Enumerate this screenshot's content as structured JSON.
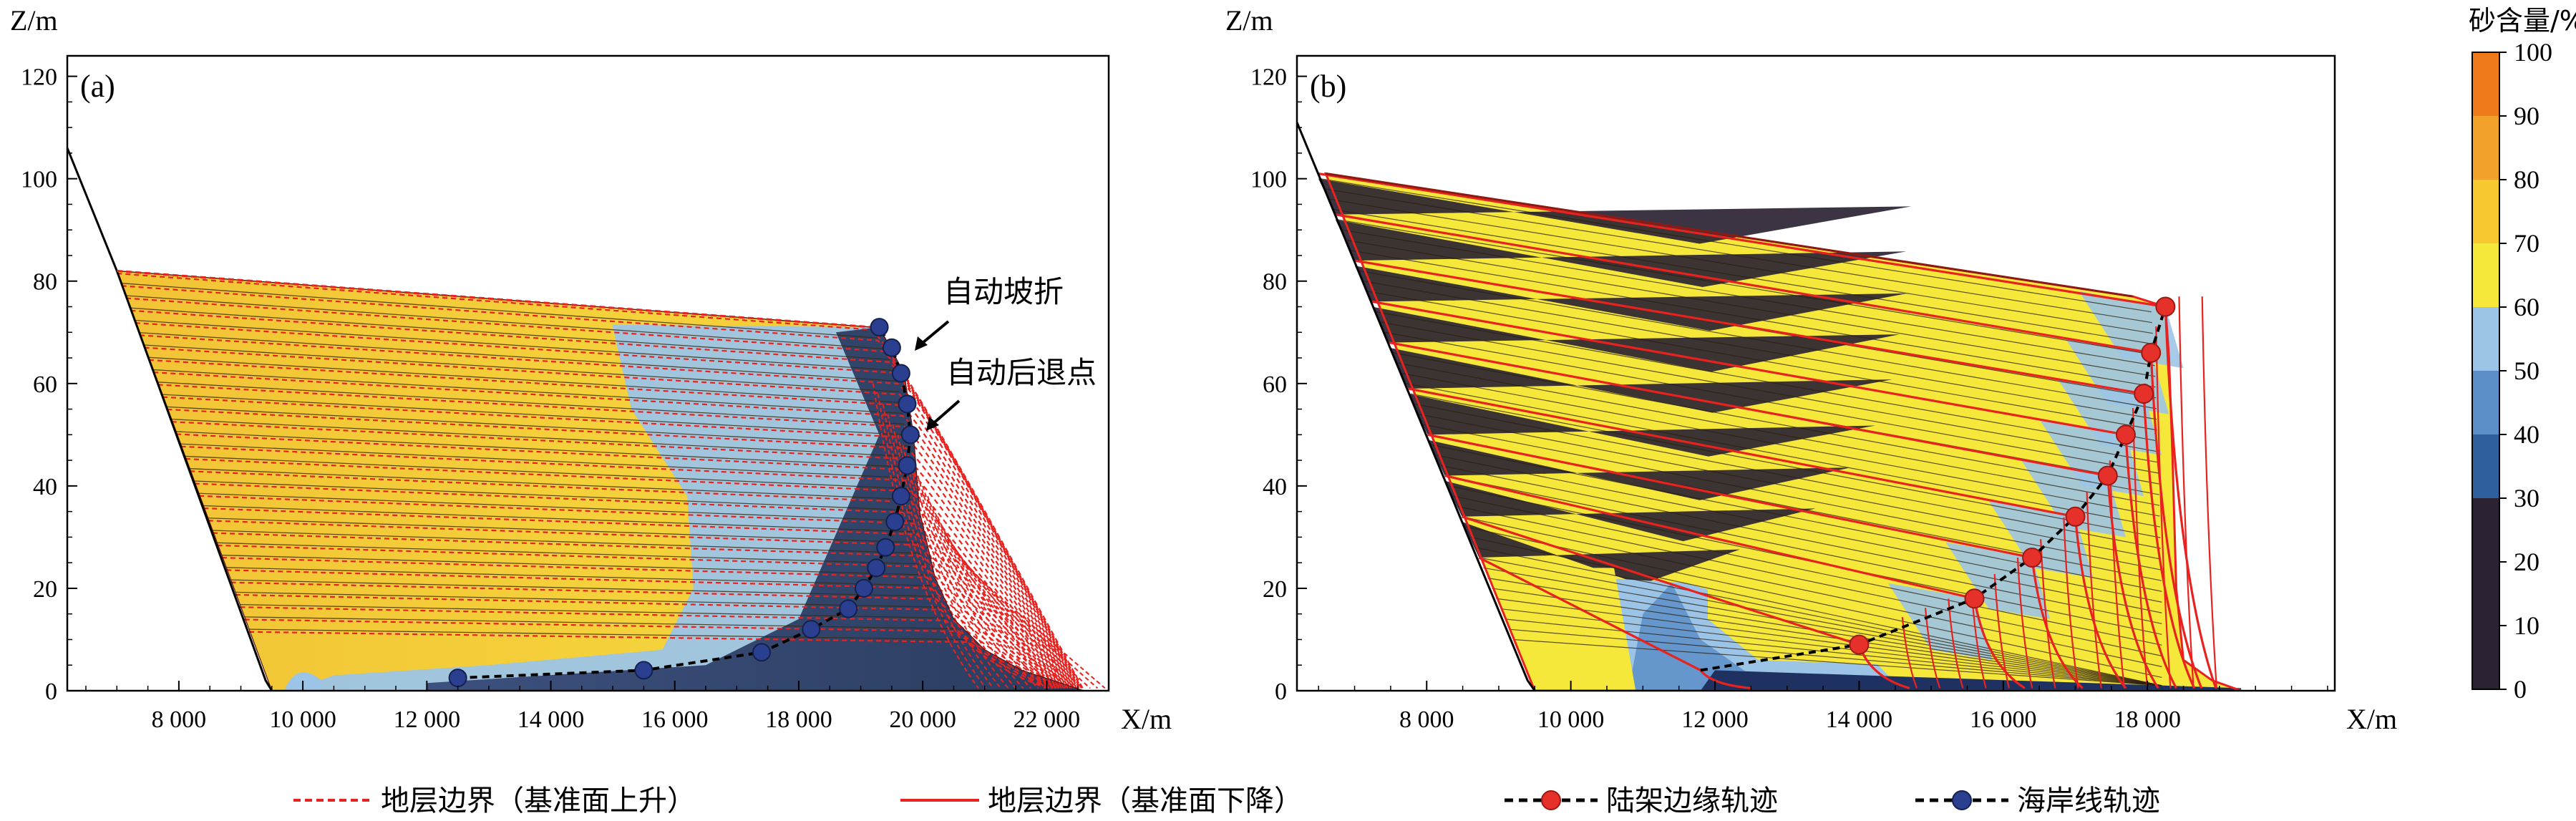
{
  "chart_data": [
    {
      "type": "area",
      "panel_label": "(a)",
      "xlabel": "X/m",
      "ylabel": "Z/m",
      "xlim": [
        6200,
        23000
      ],
      "ylim": [
        0,
        124
      ],
      "x_ticks": [
        8000,
        10000,
        12000,
        14000,
        16000,
        18000,
        20000,
        22000
      ],
      "x_tick_labels": [
        "8 000",
        "10 000",
        "12 000",
        "14 000",
        "16 000",
        "18 000",
        "20 000",
        "22 000"
      ],
      "y_ticks": [
        0,
        20,
        40,
        60,
        80,
        100,
        120
      ],
      "y_tick_labels": [
        "0",
        "20",
        "40",
        "60",
        "80",
        "100",
        "120"
      ],
      "basement": [
        [
          6200,
          106
        ],
        [
          7000,
          82
        ],
        [
          9400,
          2
        ],
        [
          9500,
          0
        ]
      ],
      "top_surface": [
        [
          7000,
          82
        ],
        [
          19200,
          71
        ]
      ],
      "sand_boundary": [
        [
          15000,
          71
        ],
        [
          15300,
          55
        ],
        [
          16200,
          38
        ],
        [
          16300,
          20
        ],
        [
          15800,
          8
        ],
        [
          13000,
          5
        ],
        [
          10500,
          3
        ]
      ],
      "shoreline_trajectory": {
        "name": "海岸线轨迹",
        "points": [
          [
            12500,
            2.5
          ],
          [
            15500,
            4
          ],
          [
            17400,
            7.5
          ],
          [
            18200,
            12
          ],
          [
            18800,
            16
          ],
          [
            19050,
            20
          ],
          [
            19250,
            24
          ],
          [
            19400,
            28
          ],
          [
            19550,
            33
          ],
          [
            19650,
            38
          ],
          [
            19750,
            44
          ],
          [
            19800,
            50
          ],
          [
            19750,
            56
          ],
          [
            19650,
            62
          ],
          [
            19500,
            67
          ],
          [
            19300,
            71
          ]
        ]
      },
      "annotations": [
        {
          "text": "自动坡折",
          "x": 19300,
          "y": 66
        },
        {
          "text": "自动后退点",
          "x": 19700,
          "y": 50
        }
      ]
    },
    {
      "type": "area",
      "panel_label": "(b)",
      "xlabel": "X/m",
      "ylabel": "Z/m",
      "xlim": [
        6200,
        20600
      ],
      "ylim": [
        0,
        124
      ],
      "x_ticks": [
        8000,
        10000,
        12000,
        14000,
        16000,
        18000
      ],
      "x_tick_labels": [
        "8 000",
        "10 000",
        "12 000",
        "14 000",
        "16 000",
        "18 000"
      ],
      "y_ticks": [
        0,
        20,
        40,
        60,
        80,
        100,
        120
      ],
      "y_tick_labels": [
        "0",
        "20",
        "40",
        "60",
        "80",
        "100",
        "120"
      ],
      "basement": [
        [
          6200,
          111
        ],
        [
          9400,
          2
        ],
        [
          9500,
          0
        ]
      ],
      "top_surface": [
        [
          6600,
          101
        ],
        [
          17800,
          77
        ],
        [
          18200,
          75
        ]
      ],
      "shelf_edge_trajectory": {
        "name": "陆架边缘轨迹",
        "points": [
          [
            11800,
            4
          ],
          [
            14000,
            9
          ],
          [
            15600,
            18
          ],
          [
            16400,
            26
          ],
          [
            17000,
            34
          ],
          [
            17450,
            42
          ],
          [
            17700,
            50
          ],
          [
            17950,
            58
          ],
          [
            18050,
            66
          ],
          [
            18250,
            75
          ]
        ]
      }
    }
  ],
  "colorbar": {
    "title": "砂含量/%",
    "min": 0,
    "max": 100,
    "ticks": [
      "0",
      "10",
      "20",
      "30",
      "40",
      "50",
      "60",
      "70",
      "80",
      "90",
      "100"
    ],
    "bands": [
      {
        "from": 0,
        "to": 30,
        "color": "#2b2333"
      },
      {
        "from": 30,
        "to": 40,
        "color": "#2f5f9c"
      },
      {
        "from": 40,
        "to": 50,
        "color": "#5c8fc8"
      },
      {
        "from": 50,
        "to": 60,
        "color": "#9cc4e6"
      },
      {
        "from": 60,
        "to": 70,
        "color": "#f6e83a"
      },
      {
        "from": 70,
        "to": 80,
        "color": "#f7c82f"
      },
      {
        "from": 80,
        "to": 90,
        "color": "#f2a22a"
      },
      {
        "from": 90,
        "to": 100,
        "color": "#ee7a1c"
      }
    ]
  },
  "legend": [
    {
      "label": "地层边界（基准面上升）",
      "style": "red-dashed"
    },
    {
      "label": "地层边界（基准面下降）",
      "style": "red-solid"
    },
    {
      "label": "陆架边缘轨迹",
      "style": "black-dashed-red-dot"
    },
    {
      "label": "海岸线轨迹",
      "style": "black-dashed-blue-dot"
    }
  ],
  "colors": {
    "sand": "#f2c335",
    "sand_bright": "#f6e83a",
    "mud_light": "#9cc4e6",
    "mud_mid": "#5c8fc8",
    "mud_dark": "#1e3160",
    "shale": "#2b2333",
    "boundary_red": "#e8221f",
    "shoreline_blue": "#2a3f8f",
    "shelf_red": "#e6302a"
  }
}
